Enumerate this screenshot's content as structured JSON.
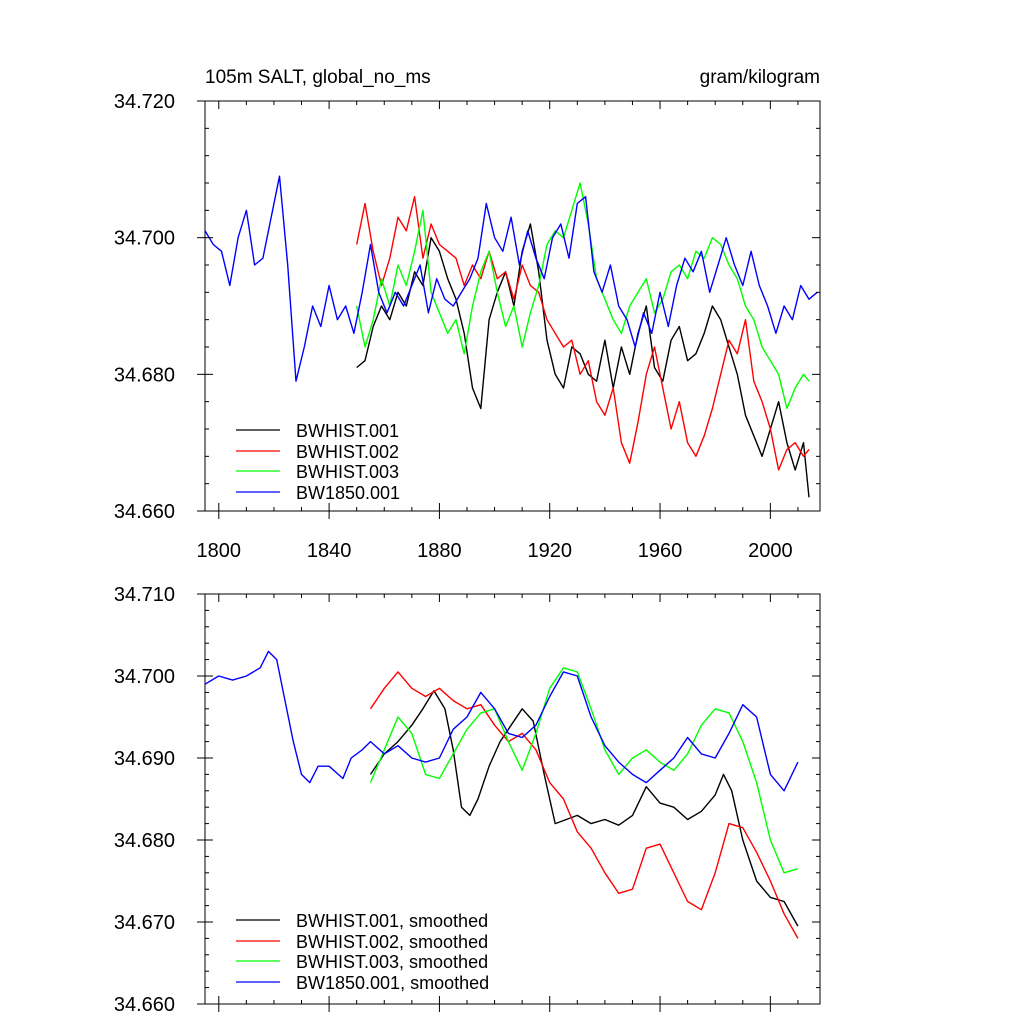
{
  "chart_data": [
    {
      "type": "line",
      "title_left": "105m SALT, global_no_ms",
      "title_right": "gram/kilogram",
      "xlabel": "",
      "ylabel": "",
      "xlim": [
        1795,
        2018
      ],
      "ylim": [
        34.66,
        34.72
      ],
      "xticks": [
        1800,
        1840,
        1880,
        1920,
        1960,
        2000
      ],
      "xtick_labels": [
        "1800",
        "1840",
        "1880",
        "1920",
        "1960",
        "2000"
      ],
      "yticks": [
        34.66,
        34.68,
        34.7,
        34.72
      ],
      "ytick_labels": [
        "34.660",
        "34.680",
        "34.700",
        "34.720"
      ],
      "legend_position": "bottom-left",
      "series": [
        {
          "name": "BWHIST.001",
          "color": "#000000",
          "x": [
            1850,
            1853,
            1856,
            1859,
            1862,
            1865,
            1868,
            1871,
            1874,
            1877,
            1880,
            1883,
            1886,
            1889,
            1892,
            1895,
            1898,
            1901,
            1904,
            1907,
            1910,
            1913,
            1916,
            1919,
            1922,
            1925,
            1928,
            1931,
            1934,
            1937,
            1940,
            1943,
            1946,
            1949,
            1952,
            1955,
            1958,
            1961,
            1964,
            1967,
            1970,
            1973,
            1976,
            1979,
            1982,
            1985,
            1988,
            1991,
            1994,
            1997,
            2000,
            2003,
            2006,
            2009,
            2012,
            2014
          ],
          "values": [
            34.681,
            34.682,
            34.687,
            34.69,
            34.688,
            34.692,
            34.69,
            34.695,
            34.693,
            34.7,
            34.698,
            34.694,
            34.691,
            34.686,
            34.678,
            34.675,
            34.688,
            34.692,
            34.695,
            34.69,
            34.698,
            34.702,
            34.695,
            34.685,
            34.68,
            34.678,
            34.684,
            34.683,
            34.68,
            34.679,
            34.685,
            34.678,
            34.684,
            34.68,
            34.686,
            34.69,
            34.681,
            34.679,
            34.685,
            34.687,
            34.682,
            34.683,
            34.686,
            34.69,
            34.688,
            34.684,
            34.68,
            34.674,
            34.671,
            34.668,
            34.672,
            34.676,
            34.67,
            34.666,
            34.67,
            34.662
          ]
        },
        {
          "name": "BWHIST.002",
          "color": "#ff0000",
          "x": [
            1850,
            1853,
            1856,
            1859,
            1862,
            1865,
            1868,
            1871,
            1874,
            1877,
            1880,
            1883,
            1886,
            1889,
            1892,
            1895,
            1898,
            1901,
            1904,
            1907,
            1910,
            1913,
            1916,
            1919,
            1922,
            1925,
            1928,
            1931,
            1934,
            1937,
            1940,
            1943,
            1946,
            1949,
            1952,
            1955,
            1958,
            1961,
            1964,
            1967,
            1970,
            1973,
            1976,
            1979,
            1982,
            1985,
            1988,
            1991,
            1994,
            1997,
            2000,
            2003,
            2006,
            2009,
            2012,
            2014
          ],
          "values": [
            34.699,
            34.705,
            34.698,
            34.693,
            34.697,
            34.703,
            34.701,
            34.706,
            34.697,
            34.702,
            34.699,
            34.698,
            34.697,
            34.693,
            34.696,
            34.694,
            34.698,
            34.694,
            34.695,
            34.691,
            34.696,
            34.693,
            34.692,
            34.688,
            34.686,
            34.684,
            34.685,
            34.68,
            34.682,
            34.676,
            34.674,
            34.678,
            34.67,
            34.667,
            34.673,
            34.68,
            34.684,
            34.678,
            34.672,
            34.676,
            34.67,
            34.668,
            34.671,
            34.675,
            34.68,
            34.685,
            34.683,
            34.688,
            34.679,
            34.676,
            34.672,
            34.666,
            34.669,
            34.67,
            34.668,
            34.669
          ]
        },
        {
          "name": "BWHIST.003",
          "color": "#00ff00",
          "x": [
            1850,
            1853,
            1856,
            1859,
            1862,
            1865,
            1868,
            1871,
            1874,
            1877,
            1880,
            1883,
            1886,
            1889,
            1892,
            1895,
            1898,
            1901,
            1904,
            1907,
            1910,
            1913,
            1916,
            1919,
            1922,
            1925,
            1928,
            1931,
            1934,
            1937,
            1940,
            1943,
            1946,
            1949,
            1952,
            1955,
            1958,
            1961,
            1964,
            1967,
            1970,
            1973,
            1976,
            1979,
            1982,
            1985,
            1988,
            1991,
            1994,
            1997,
            2000,
            2003,
            2006,
            2009,
            2012,
            2014
          ],
          "values": [
            34.69,
            34.684,
            34.688,
            34.694,
            34.69,
            34.696,
            34.693,
            34.698,
            34.704,
            34.692,
            34.689,
            34.686,
            34.688,
            34.683,
            34.69,
            34.695,
            34.698,
            34.692,
            34.687,
            34.69,
            34.684,
            34.689,
            34.693,
            34.699,
            34.701,
            34.7,
            34.704,
            34.708,
            34.702,
            34.694,
            34.691,
            34.688,
            34.686,
            34.69,
            34.692,
            34.694,
            34.689,
            34.691,
            34.695,
            34.696,
            34.694,
            34.698,
            34.697,
            34.7,
            34.699,
            34.696,
            34.694,
            34.69,
            34.688,
            34.684,
            34.682,
            34.68,
            34.675,
            34.678,
            34.68,
            34.679
          ]
        },
        {
          "name": "BW1850.001",
          "color": "#0000ff",
          "x": [
            1795,
            1798,
            1801,
            1804,
            1807,
            1810,
            1813,
            1816,
            1819,
            1822,
            1825,
            1828,
            1831,
            1834,
            1837,
            1840,
            1843,
            1846,
            1849,
            1852,
            1855,
            1858,
            1861,
            1864,
            1867,
            1870,
            1873,
            1876,
            1879,
            1882,
            1885,
            1888,
            1891,
            1894,
            1897,
            1900,
            1903,
            1906,
            1909,
            1912,
            1915,
            1918,
            1921,
            1924,
            1927,
            1930,
            1933,
            1936,
            1939,
            1942,
            1945,
            1948,
            1951,
            1954,
            1957,
            1960,
            1963,
            1966,
            1969,
            1972,
            1975,
            1978,
            1981,
            1984,
            1987,
            1990,
            1993,
            1996,
            1999,
            2002,
            2005,
            2008,
            2011,
            2014,
            2017
          ],
          "values": [
            34.701,
            34.699,
            34.698,
            34.693,
            34.7,
            34.704,
            34.696,
            34.697,
            34.703,
            34.709,
            34.696,
            34.679,
            34.684,
            34.69,
            34.687,
            34.693,
            34.688,
            34.69,
            34.686,
            34.692,
            34.699,
            34.692,
            34.689,
            34.692,
            34.69,
            34.693,
            34.696,
            34.689,
            34.694,
            34.691,
            34.69,
            34.692,
            34.694,
            34.697,
            34.705,
            34.7,
            34.698,
            34.703,
            34.696,
            34.701,
            34.697,
            34.694,
            34.7,
            34.702,
            34.697,
            34.705,
            34.706,
            34.695,
            34.692,
            34.696,
            34.69,
            34.688,
            34.684,
            34.689,
            34.686,
            34.692,
            34.687,
            34.693,
            34.697,
            34.695,
            34.698,
            34.692,
            34.696,
            34.7,
            34.696,
            34.693,
            34.698,
            34.693,
            34.69,
            34.686,
            34.69,
            34.688,
            34.693,
            34.691,
            34.692
          ]
        }
      ]
    },
    {
      "type": "line",
      "title": "",
      "xlabel": "",
      "ylabel": "",
      "xlim": [
        1795,
        2018
      ],
      "ylim": [
        34.66,
        34.71
      ],
      "xticks": [
        1800,
        1840,
        1880,
        1920,
        1960,
        2000
      ],
      "yticks": [
        34.66,
        34.67,
        34.68,
        34.69,
        34.7,
        34.71
      ],
      "ytick_labels": [
        "34.660",
        "34.670",
        "34.680",
        "34.690",
        "34.700",
        "34.710"
      ],
      "legend_position": "bottom-left",
      "series": [
        {
          "name": "BWHIST.001, smoothed",
          "color": "#000000",
          "x": [
            1855,
            1860,
            1865,
            1870,
            1874,
            1878,
            1882,
            1885,
            1888,
            1891,
            1894,
            1898,
            1902,
            1906,
            1910,
            1914,
            1918,
            1922,
            1926,
            1930,
            1935,
            1940,
            1945,
            1950,
            1955,
            1960,
            1965,
            1970,
            1975,
            1980,
            1983,
            1986,
            1990,
            1995,
            2000,
            2005,
            2010
          ],
          "values": [
            34.688,
            34.6905,
            34.692,
            34.694,
            34.696,
            34.6982,
            34.696,
            34.691,
            34.684,
            34.683,
            34.685,
            34.689,
            34.692,
            34.694,
            34.696,
            34.6945,
            34.688,
            34.682,
            34.6825,
            34.683,
            34.682,
            34.6825,
            34.6818,
            34.683,
            34.6865,
            34.6845,
            34.684,
            34.6825,
            34.6835,
            34.6855,
            34.688,
            34.686,
            34.68,
            34.675,
            34.673,
            34.6725,
            34.6695
          ]
        },
        {
          "name": "BWHIST.002, smoothed",
          "color": "#ff0000",
          "x": [
            1855,
            1860,
            1865,
            1870,
            1875,
            1880,
            1885,
            1890,
            1895,
            1900,
            1905,
            1910,
            1915,
            1920,
            1925,
            1930,
            1935,
            1940,
            1945,
            1950,
            1955,
            1960,
            1965,
            1970,
            1975,
            1980,
            1985,
            1990,
            1995,
            2000,
            2005,
            2010
          ],
          "values": [
            34.696,
            34.6985,
            34.7005,
            34.6985,
            34.6975,
            34.6985,
            34.697,
            34.696,
            34.6965,
            34.694,
            34.692,
            34.693,
            34.691,
            34.687,
            34.685,
            34.681,
            34.679,
            34.676,
            34.6735,
            34.674,
            34.679,
            34.6795,
            34.676,
            34.6725,
            34.6715,
            34.676,
            34.682,
            34.6815,
            34.6785,
            34.675,
            34.671,
            34.668
          ]
        },
        {
          "name": "BWHIST.003, smoothed",
          "color": "#00ff00",
          "x": [
            1855,
            1860,
            1865,
            1870,
            1875,
            1880,
            1885,
            1890,
            1895,
            1900,
            1905,
            1910,
            1915,
            1920,
            1925,
            1930,
            1935,
            1940,
            1945,
            1950,
            1955,
            1960,
            1965,
            1970,
            1975,
            1980,
            1985,
            1990,
            1995,
            2000,
            2005,
            2010
          ],
          "values": [
            34.687,
            34.691,
            34.695,
            34.693,
            34.688,
            34.6875,
            34.6905,
            34.6935,
            34.6955,
            34.696,
            34.692,
            34.6885,
            34.693,
            34.6985,
            34.701,
            34.7005,
            34.696,
            34.691,
            34.688,
            34.69,
            34.691,
            34.6895,
            34.6885,
            34.6905,
            34.694,
            34.696,
            34.6955,
            34.692,
            34.687,
            34.68,
            34.676,
            34.6765
          ]
        },
        {
          "name": "BW1850.001, smoothed",
          "color": "#0000ff",
          "x": [
            1795,
            1800,
            1805,
            1810,
            1815,
            1818,
            1821,
            1824,
            1827,
            1830,
            1833,
            1836,
            1840,
            1845,
            1848,
            1852,
            1855,
            1860,
            1865,
            1870,
            1875,
            1880,
            1885,
            1890,
            1895,
            1900,
            1905,
            1910,
            1915,
            1920,
            1925,
            1930,
            1935,
            1940,
            1945,
            1950,
            1955,
            1960,
            1965,
            1970,
            1975,
            1980,
            1985,
            1990,
            1995,
            2000,
            2005,
            2010
          ],
          "values": [
            34.699,
            34.7,
            34.6995,
            34.7,
            34.701,
            34.703,
            34.702,
            34.697,
            34.692,
            34.688,
            34.687,
            34.689,
            34.689,
            34.6875,
            34.69,
            34.691,
            34.692,
            34.6905,
            34.6915,
            34.69,
            34.6895,
            34.69,
            34.6935,
            34.695,
            34.698,
            34.696,
            34.693,
            34.6925,
            34.694,
            34.6975,
            34.7005,
            34.7,
            34.695,
            34.6915,
            34.6895,
            34.688,
            34.687,
            34.6885,
            34.69,
            34.6925,
            34.6905,
            34.69,
            34.693,
            34.6965,
            34.695,
            34.688,
            34.686,
            34.6895
          ]
        }
      ]
    }
  ]
}
